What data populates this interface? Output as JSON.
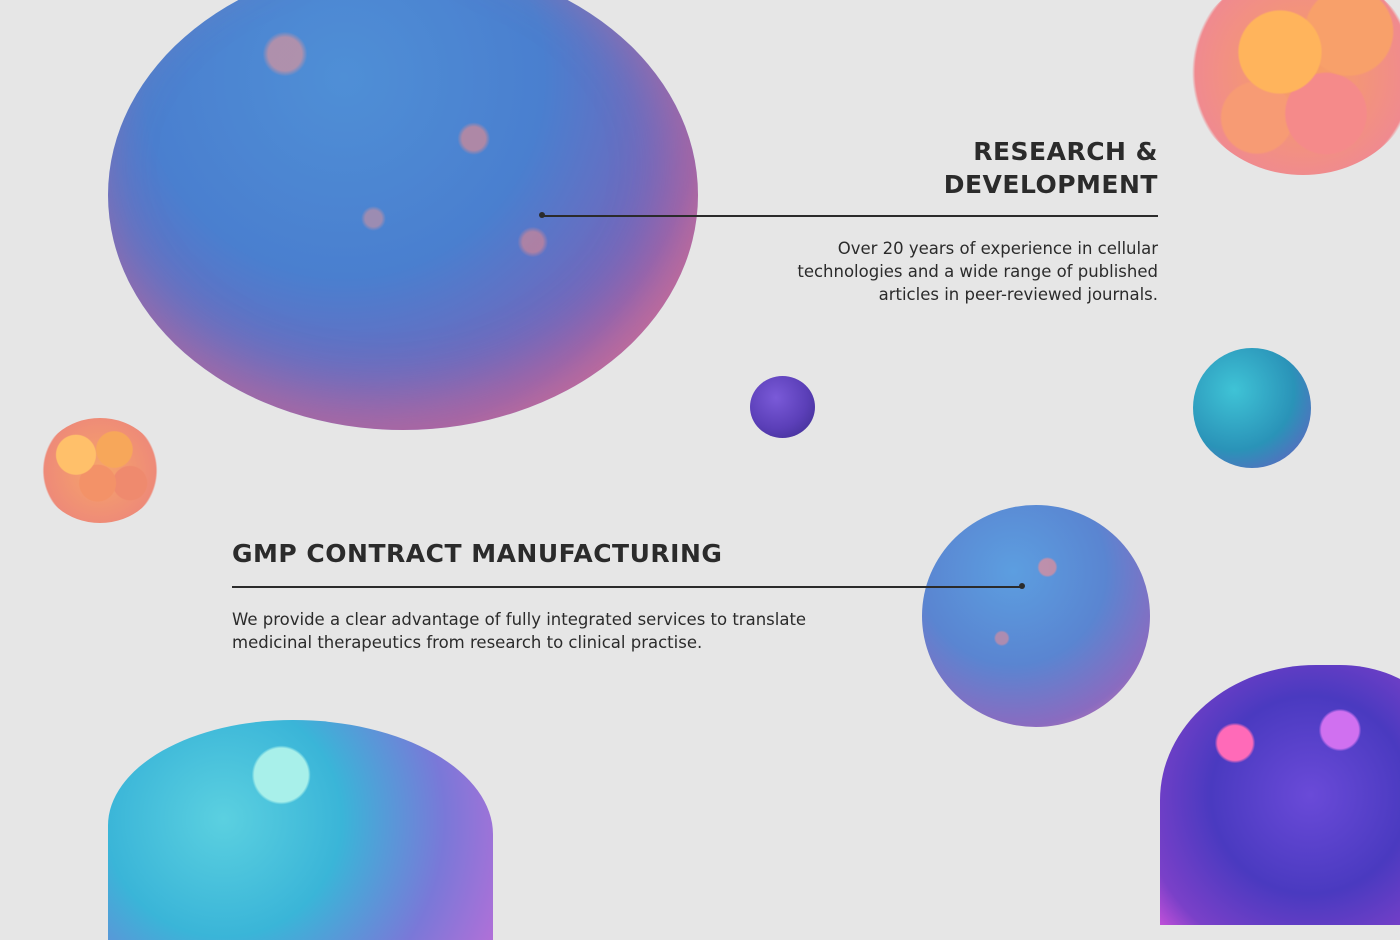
{
  "research": {
    "title_line1": "RESEARCH &",
    "title_line2": "DEVELOPMENT",
    "text_line1": "Over 20 years of experience in cellular",
    "text_line2": "technologies and a wide range of published",
    "text_line3": "articles in peer-reviewed journals."
  },
  "gmp": {
    "title": "GMP CONTRACT MANUFACTURING",
    "text_line1": "We provide a clear advantage of fully integrated services to translate",
    "text_line2": "medicinal therapeutics from research to clinical practise."
  },
  "colors": {
    "background": "#e6e6e6",
    "text": "#2b2b2b"
  },
  "decorations": [
    "large-blue-cell",
    "orange-cell-cluster",
    "purple-small-cell",
    "teal-cell",
    "medium-blue-cell",
    "cyan-cell-cluster",
    "purple-cell-cluster"
  ]
}
